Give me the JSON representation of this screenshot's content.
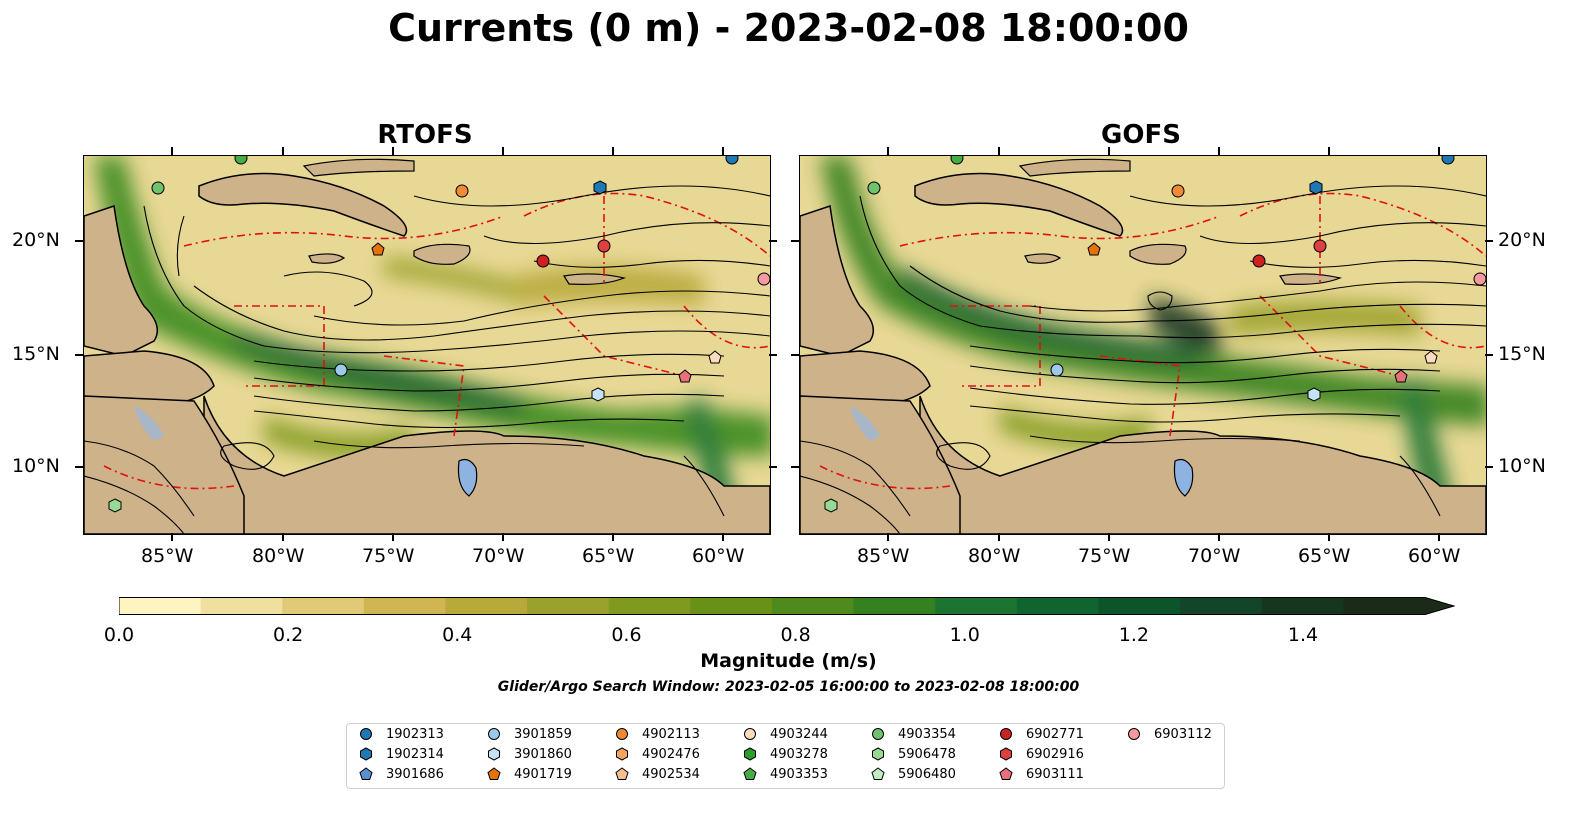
{
  "title": "Currents (0 m) - 2023-02-08 18:00:00",
  "panels": [
    {
      "title": "RTOFS"
    },
    {
      "title": "GOFS"
    }
  ],
  "axes": {
    "x_ticks": [
      "85°W",
      "80°W",
      "75°W",
      "70°W",
      "65°W",
      "60°W"
    ],
    "y_ticks": [
      "20°N",
      "15°N",
      "10°N"
    ]
  },
  "colorbar": {
    "label": "Magnitude (m/s)",
    "ticks": [
      "0.0",
      "0.2",
      "0.4",
      "0.6",
      "0.8",
      "1.0",
      "1.2",
      "1.4"
    ],
    "range": [
      0,
      1.5
    ],
    "extend": "max",
    "colors": [
      "#fdf4c0",
      "#efe0a0",
      "#e0ca78",
      "#d1b552",
      "#b8a93a",
      "#9aa12c",
      "#7f9a1e",
      "#679117",
      "#4e8a1c",
      "#36811f",
      "#1d7330",
      "#0f6430",
      "#0c5429",
      "#12452a",
      "#173620",
      "#1c2a1a"
    ]
  },
  "search_window": "Glider/Argo Search Window: 2023-02-05 16:00:00 to 2023-02-08 18:00:00",
  "legend": [
    {
      "label": "1902313",
      "marker": "circle",
      "color": "#1f77b4"
    },
    {
      "label": "1902314",
      "marker": "hexagon",
      "color": "#1f77b4"
    },
    {
      "label": "3901686",
      "marker": "pentagon",
      "color": "#5a8fd0"
    },
    {
      "label": "3901859",
      "marker": "circle",
      "color": "#9ecae9"
    },
    {
      "label": "3901860",
      "marker": "hexagon",
      "color": "#c6e2f5"
    },
    {
      "label": "4901719",
      "marker": "pentagon",
      "color": "#e6720c"
    },
    {
      "label": "4902113",
      "marker": "circle",
      "color": "#f08a36"
    },
    {
      "label": "4902476",
      "marker": "hexagon",
      "color": "#f4a660"
    },
    {
      "label": "4902534",
      "marker": "pentagon",
      "color": "#f8c190"
    },
    {
      "label": "4903244",
      "marker": "circle",
      "color": "#fbdcbf"
    },
    {
      "label": "4903278",
      "marker": "hexagon",
      "color": "#2a9d2a"
    },
    {
      "label": "4903353",
      "marker": "pentagon",
      "color": "#46ad46"
    },
    {
      "label": "4903354",
      "marker": "circle",
      "color": "#6fc36f"
    },
    {
      "label": "5906478",
      "marker": "hexagon",
      "color": "#98d994"
    },
    {
      "label": "5906480",
      "marker": "pentagon",
      "color": "#c4edbf"
    },
    {
      "label": "6902771",
      "marker": "circle",
      "color": "#cc2222"
    },
    {
      "label": "6902916",
      "marker": "hexagon",
      "color": "#de4040"
    },
    {
      "label": "6903111",
      "marker": "pentagon",
      "color": "#e8707a"
    },
    {
      "label": "6903112",
      "marker": "circle",
      "color": "#f59aa0"
    }
  ]
}
